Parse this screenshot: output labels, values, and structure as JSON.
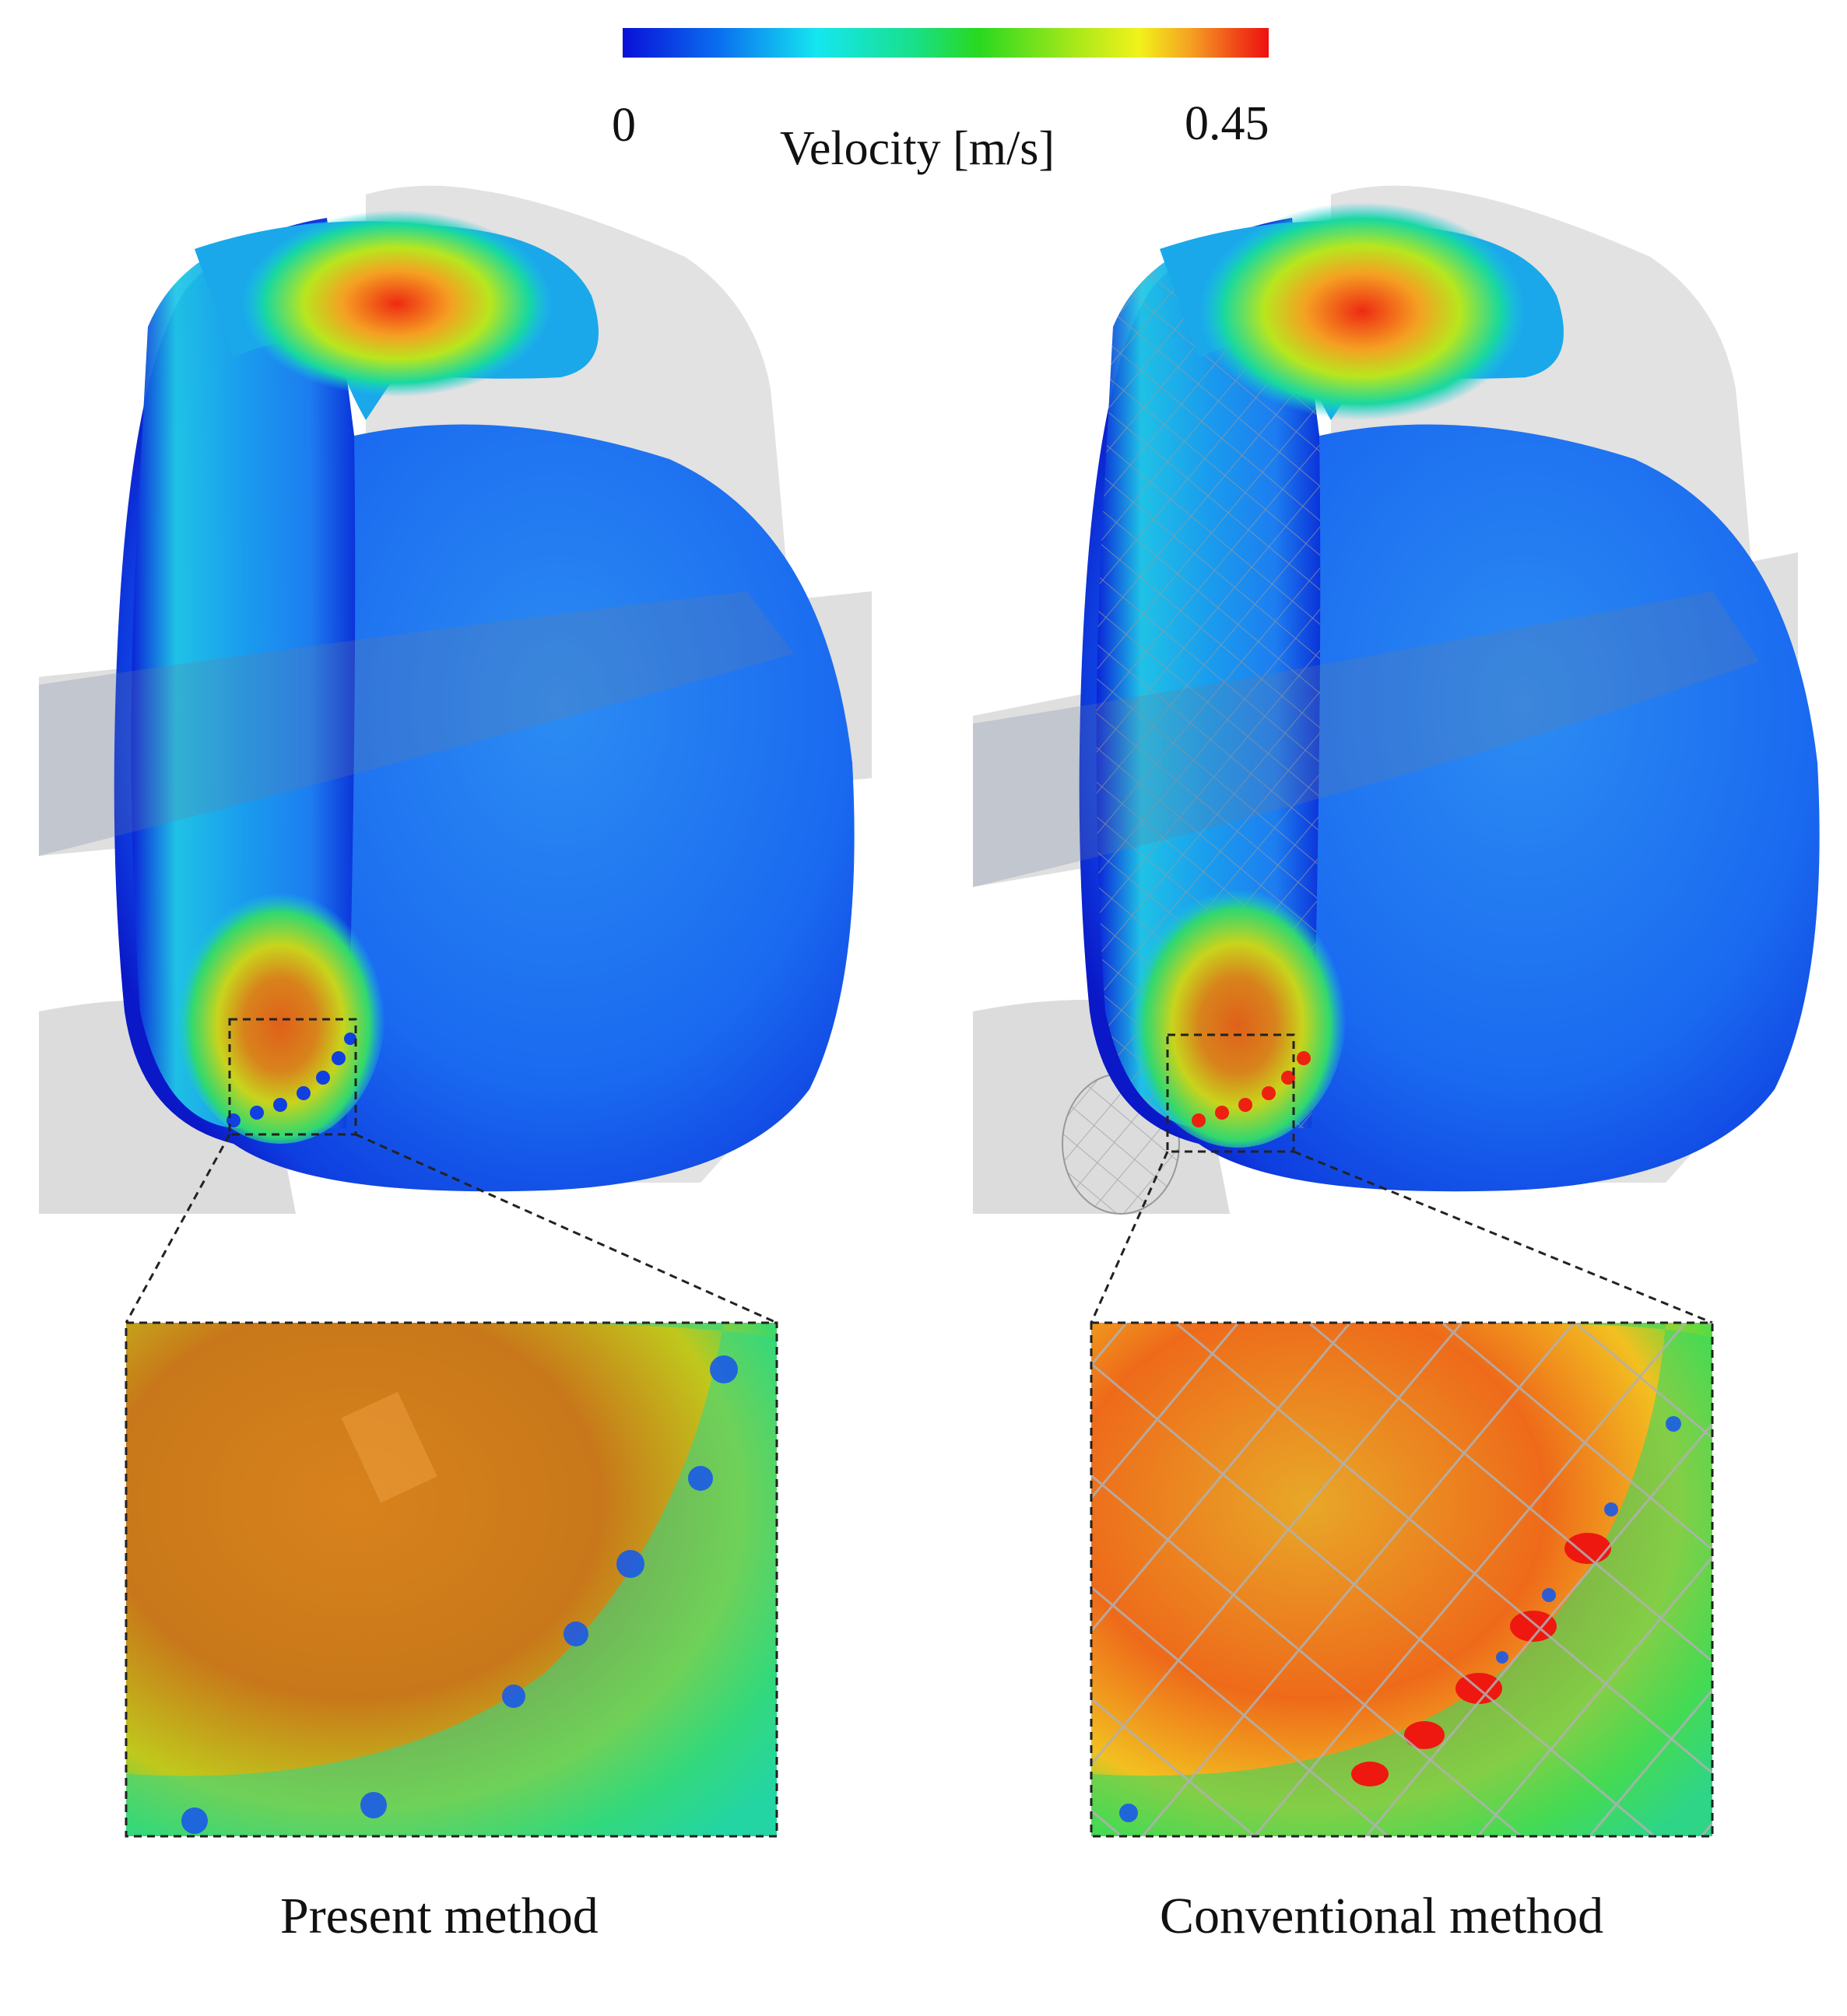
{
  "colorbar": {
    "min_label": "0",
    "max_label": "0.45",
    "title": "Velocity [m/s]",
    "colors": [
      "#0a10d8",
      "#0a6ff0",
      "#15e6f0",
      "#18e08a",
      "#28d820",
      "#a8e81a",
      "#f2f21a",
      "#f5a022",
      "#f04818",
      "#ee1010"
    ]
  },
  "panels": {
    "left": {
      "label": "Present method"
    },
    "right": {
      "label": "Conventional method"
    }
  }
}
